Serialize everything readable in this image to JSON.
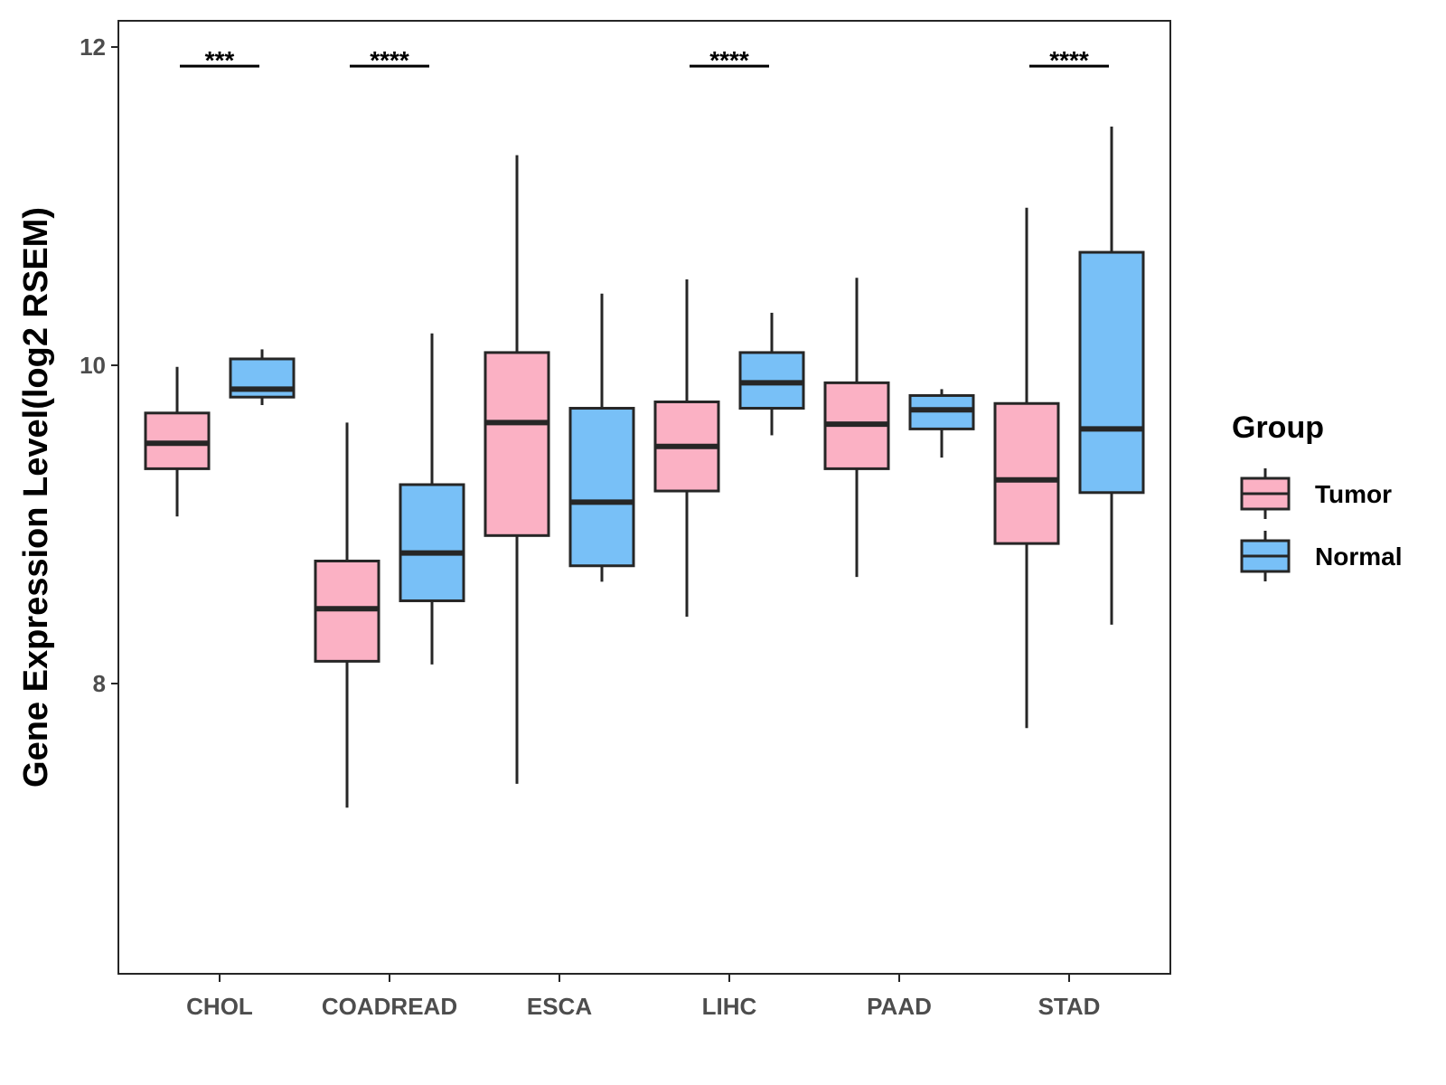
{
  "chart_data": {
    "type": "boxplot",
    "title": "",
    "xlabel": "",
    "ylabel": "Gene Expression Level(log2 RSEM)",
    "ylim": [
      6.2,
      12.2
    ],
    "yticks": [
      8,
      10,
      12
    ],
    "grid": false,
    "legend_position": "right",
    "legend_title": "Group",
    "colors": {
      "Tumor": "#fbb1c4",
      "Normal": "#78c0f7",
      "stroke": "#262626"
    },
    "categories": [
      "CHOL",
      "COADREAD",
      "ESCA",
      "LIHC",
      "PAAD",
      "STAD"
    ],
    "series": [
      {
        "name": "Tumor",
        "boxes": [
          {
            "min": 9.05,
            "q1": 9.35,
            "median": 9.51,
            "q3": 9.7,
            "max": 9.99
          },
          {
            "min": 7.22,
            "q1": 8.14,
            "median": 8.47,
            "q3": 8.77,
            "max": 9.64
          },
          {
            "min": 7.37,
            "q1": 8.93,
            "median": 9.64,
            "q3": 10.08,
            "max": 11.32
          },
          {
            "min": 8.42,
            "q1": 9.21,
            "median": 9.49,
            "q3": 9.77,
            "max": 10.54
          },
          {
            "min": 8.67,
            "q1": 9.35,
            "median": 9.63,
            "q3": 9.89,
            "max": 10.55
          },
          {
            "min": 7.72,
            "q1": 8.88,
            "median": 9.28,
            "q3": 9.76,
            "max": 10.99
          }
        ]
      },
      {
        "name": "Normal",
        "boxes": [
          {
            "min": 9.75,
            "q1": 9.8,
            "median": 9.85,
            "q3": 10.04,
            "max": 10.1
          },
          {
            "min": 8.12,
            "q1": 8.52,
            "median": 8.82,
            "q3": 9.25,
            "max": 10.2
          },
          {
            "min": 8.64,
            "q1": 8.74,
            "median": 9.14,
            "q3": 9.73,
            "max": 10.45
          },
          {
            "min": 9.56,
            "q1": 9.73,
            "median": 9.89,
            "q3": 10.08,
            "max": 10.33
          },
          {
            "min": 9.42,
            "q1": 9.6,
            "median": 9.72,
            "q3": 9.81,
            "max": 9.85
          },
          {
            "min": 8.37,
            "q1": 9.2,
            "median": 9.6,
            "q3": 10.71,
            "max": 11.5
          }
        ]
      }
    ],
    "significance": [
      {
        "category": "CHOL",
        "label": "***",
        "y": 11.88
      },
      {
        "category": "COADREAD",
        "label": "****",
        "y": 11.88
      },
      {
        "category": "LIHC",
        "label": "****",
        "y": 11.88
      },
      {
        "category": "STAD",
        "label": "****",
        "y": 11.88
      }
    ]
  }
}
